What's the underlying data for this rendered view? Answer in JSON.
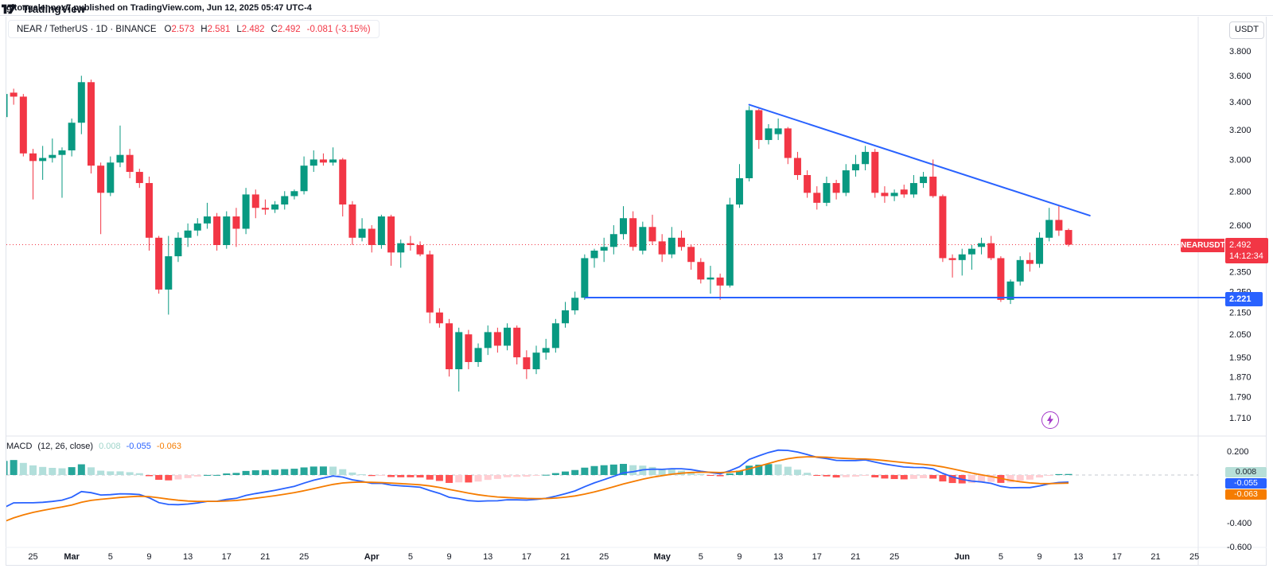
{
  "top_bar": {
    "text": "gitongalennox7 published on TradingView.com, Jun 12, 2025 05:47 UTC-4"
  },
  "legend": {
    "left": "NEAR / TetherUS · 1D · BINANCE",
    "o_label": "O",
    "o": "2.573",
    "h_label": "H",
    "h": "2.581",
    "l_label": "L",
    "l": "2.482",
    "c_label": "C",
    "c": "2.492",
    "change": "-0.081 (-3.15%)"
  },
  "currency_button": "USDT",
  "price_axis": {
    "ticks": [
      {
        "label": "3.800",
        "price": 3.8
      },
      {
        "label": "3.600",
        "price": 3.6
      },
      {
        "label": "3.400",
        "price": 3.4
      },
      {
        "label": "3.200",
        "price": 3.2
      },
      {
        "label": "3.000",
        "price": 3.0
      },
      {
        "label": "2.800",
        "price": 2.8
      },
      {
        "label": "2.600",
        "price": 2.6
      },
      {
        "label": "2.350",
        "price": 2.35
      },
      {
        "label": "2.250",
        "price": 2.25
      },
      {
        "label": "2.150",
        "price": 2.15
      },
      {
        "label": "2.050",
        "price": 2.05
      },
      {
        "label": "1.950",
        "price": 1.95
      },
      {
        "label": "1.870",
        "price": 1.87
      },
      {
        "label": "1.790",
        "price": 1.79
      },
      {
        "label": "1.710",
        "price": 1.71
      }
    ],
    "last_price_tag": {
      "symbol": "NEARUSDT",
      "price": "2.492",
      "countdown": "14:12:34",
      "color": "#f23645"
    },
    "hline_tag": {
      "price": "2.221",
      "color": "#2962ff"
    }
  },
  "time_axis": {
    "ticks": [
      {
        "label": "25",
        "i": 3
      },
      {
        "label": "Mar",
        "i": 7,
        "month": true
      },
      {
        "label": "5",
        "i": 11
      },
      {
        "label": "9",
        "i": 15
      },
      {
        "label": "13",
        "i": 19
      },
      {
        "label": "17",
        "i": 23
      },
      {
        "label": "21",
        "i": 27
      },
      {
        "label": "25",
        "i": 31
      },
      {
        "label": "Apr",
        "i": 38,
        "month": true
      },
      {
        "label": "5",
        "i": 42
      },
      {
        "label": "9",
        "i": 46
      },
      {
        "label": "13",
        "i": 50
      },
      {
        "label": "17",
        "i": 54
      },
      {
        "label": "21",
        "i": 58
      },
      {
        "label": "25",
        "i": 62
      },
      {
        "label": "May",
        "i": 68,
        "month": true
      },
      {
        "label": "5",
        "i": 72
      },
      {
        "label": "9",
        "i": 76
      },
      {
        "label": "13",
        "i": 80
      },
      {
        "label": "17",
        "i": 84
      },
      {
        "label": "21",
        "i": 88
      },
      {
        "label": "25",
        "i": 92
      },
      {
        "label": "Jun",
        "i": 99,
        "month": true
      },
      {
        "label": "5",
        "i": 103
      },
      {
        "label": "9",
        "i": 107
      },
      {
        "label": "13",
        "i": 111
      },
      {
        "label": "17",
        "i": 115
      },
      {
        "label": "21",
        "i": 119
      },
      {
        "label": "25",
        "i": 123
      }
    ]
  },
  "macd": {
    "title": "MACD",
    "params": "(12, 26, close)",
    "hist_value": "0.008",
    "macd_value": "-0.055",
    "signal_value": "-0.063",
    "hist_value_color": "#9fd4ca",
    "macd_value_color": "#2962ff",
    "signal_value_color": "#f57c00",
    "axis_ticks": [
      {
        "label": "0.200",
        "value": 0.2
      },
      {
        "label": "-0.400",
        "value": -0.4
      },
      {
        "label": "-0.600",
        "value": -0.6
      }
    ]
  },
  "attribution": {
    "brand": "TradingView"
  },
  "chart_data": {
    "type": "candlestick",
    "symbol": "NEAR / TetherUS",
    "ticker": "NEARUSDT",
    "exchange": "BINANCE",
    "interval": "1D",
    "scale": "log",
    "ylim": [
      1.71,
      3.8
    ],
    "colors": {
      "up": "#089981",
      "down": "#f23645",
      "line_blue": "#2962ff",
      "hist_up": "#26a69a",
      "hist_up_fade": "#b2dfdb",
      "hist_down": "#ff5252",
      "hist_down_fade": "#ffcdd2",
      "macd_line": "#2962ff",
      "signal_line": "#f57c00",
      "current_price": "#f23645"
    },
    "columns": [
      "date",
      "open",
      "high",
      "low",
      "close"
    ],
    "candles": [
      [
        "Feb 22",
        3.29,
        3.63,
        3.26,
        3.46
      ],
      [
        "Feb 23",
        3.47,
        3.5,
        3.38,
        3.44
      ],
      [
        "Feb 24",
        3.44,
        3.46,
        3.02,
        3.04
      ],
      [
        "Feb 25",
        3.04,
        3.07,
        2.75,
        2.99
      ],
      [
        "Feb 26",
        2.99,
        3.09,
        2.87,
        3.01
      ],
      [
        "Feb 27",
        3.01,
        3.14,
        2.98,
        3.03
      ],
      [
        "Feb 28",
        3.03,
        3.08,
        2.76,
        3.06
      ],
      [
        "Mar 1",
        3.06,
        3.28,
        3.02,
        3.25
      ],
      [
        "Mar 2",
        3.25,
        3.6,
        3.17,
        3.55
      ],
      [
        "Mar 3",
        3.55,
        3.57,
        2.91,
        2.96
      ],
      [
        "Mar 4",
        2.96,
        2.98,
        2.55,
        2.79
      ],
      [
        "Mar 5",
        2.79,
        3.02,
        2.77,
        2.98
      ],
      [
        "Mar 6",
        2.98,
        3.23,
        2.95,
        3.03
      ],
      [
        "Mar 7",
        3.03,
        3.07,
        2.88,
        2.92
      ],
      [
        "Mar 8",
        2.92,
        2.94,
        2.82,
        2.85
      ],
      [
        "Mar 9",
        2.85,
        2.89,
        2.46,
        2.53
      ],
      [
        "Mar 10",
        2.53,
        2.54,
        2.24,
        2.26
      ],
      [
        "Mar 11",
        2.26,
        2.54,
        2.14,
        2.43
      ],
      [
        "Mar 12",
        2.43,
        2.56,
        2.4,
        2.53
      ],
      [
        "Mar 13",
        2.53,
        2.61,
        2.48,
        2.57
      ],
      [
        "Mar 14",
        2.57,
        2.64,
        2.54,
        2.61
      ],
      [
        "Mar 15",
        2.61,
        2.73,
        2.58,
        2.65
      ],
      [
        "Mar 16",
        2.65,
        2.67,
        2.46,
        2.49
      ],
      [
        "Mar 17",
        2.49,
        2.68,
        2.47,
        2.65
      ],
      [
        "Mar 18",
        2.65,
        2.7,
        2.48,
        2.58
      ],
      [
        "Mar 19",
        2.58,
        2.82,
        2.55,
        2.78
      ],
      [
        "Mar 20",
        2.78,
        2.81,
        2.64,
        2.7
      ],
      [
        "Mar 21",
        2.7,
        2.75,
        2.66,
        2.69
      ],
      [
        "Mar 22",
        2.69,
        2.74,
        2.67,
        2.72
      ],
      [
        "Mar 23",
        2.72,
        2.8,
        2.69,
        2.77
      ],
      [
        "Mar 24",
        2.77,
        2.81,
        2.75,
        2.8
      ],
      [
        "Mar 25",
        2.8,
        3.02,
        2.78,
        2.96
      ],
      [
        "Mar 26",
        2.96,
        3.06,
        2.92,
        3.0
      ],
      [
        "Mar 27",
        3.0,
        3.04,
        2.96,
        2.98
      ],
      [
        "Mar 28",
        2.98,
        3.08,
        2.96,
        3.0
      ],
      [
        "Mar 29",
        3.0,
        3.01,
        2.65,
        2.72
      ],
      [
        "Mar 30",
        2.72,
        2.74,
        2.49,
        2.53
      ],
      [
        "Mar 31",
        2.53,
        2.64,
        2.51,
        2.58
      ],
      [
        "Apr 1",
        2.58,
        2.6,
        2.45,
        2.49
      ],
      [
        "Apr 2",
        2.49,
        2.66,
        2.47,
        2.65
      ],
      [
        "Apr 3",
        2.65,
        2.66,
        2.38,
        2.45
      ],
      [
        "Apr 4",
        2.45,
        2.52,
        2.37,
        2.5
      ],
      [
        "Apr 5",
        2.5,
        2.54,
        2.46,
        2.49
      ],
      [
        "Apr 6",
        2.49,
        2.51,
        2.43,
        2.44
      ],
      [
        "Apr 7",
        2.44,
        2.46,
        2.1,
        2.15
      ],
      [
        "Apr 8",
        2.15,
        2.17,
        2.08,
        2.1
      ],
      [
        "Apr 9",
        2.1,
        2.12,
        1.87,
        1.9
      ],
      [
        "Apr 10",
        1.9,
        2.08,
        1.81,
        2.06
      ],
      [
        "Apr 11",
        2.05,
        2.07,
        1.9,
        1.93
      ],
      [
        "Apr 12",
        1.93,
        2.01,
        1.91,
        1.99
      ],
      [
        "Apr 13",
        1.99,
        2.09,
        1.96,
        2.06
      ],
      [
        "Apr 14",
        2.06,
        2.08,
        1.97,
        2.0
      ],
      [
        "Apr 15",
        2.0,
        2.1,
        1.98,
        2.08
      ],
      [
        "Apr 16",
        2.08,
        2.09,
        1.92,
        1.95
      ],
      [
        "Apr 17",
        1.95,
        1.98,
        1.86,
        1.9
      ],
      [
        "Apr 18",
        1.9,
        2.0,
        1.88,
        1.97
      ],
      [
        "Apr 19",
        1.97,
        2.03,
        1.94,
        1.99
      ],
      [
        "Apr 20",
        1.99,
        2.12,
        1.97,
        2.1
      ],
      [
        "Apr 21",
        2.1,
        2.2,
        2.08,
        2.16
      ],
      [
        "Apr 22",
        2.16,
        2.25,
        2.14,
        2.22
      ],
      [
        "Apr 23",
        2.22,
        2.44,
        2.21,
        2.42
      ],
      [
        "Apr 24",
        2.42,
        2.47,
        2.37,
        2.46
      ],
      [
        "Apr 25",
        2.46,
        2.53,
        2.4,
        2.48
      ],
      [
        "Apr 26",
        2.48,
        2.6,
        2.44,
        2.55
      ],
      [
        "Apr 27",
        2.55,
        2.71,
        2.52,
        2.64
      ],
      [
        "Apr 28",
        2.64,
        2.68,
        2.46,
        2.48
      ],
      [
        "Apr 29",
        2.46,
        2.62,
        2.44,
        2.59
      ],
      [
        "Apr 30",
        2.59,
        2.66,
        2.49,
        2.51
      ],
      [
        "May 1",
        2.51,
        2.55,
        2.4,
        2.44
      ],
      [
        "May 2",
        2.44,
        2.59,
        2.42,
        2.53
      ],
      [
        "May 3",
        2.53,
        2.57,
        2.46,
        2.48
      ],
      [
        "May 4",
        2.48,
        2.49,
        2.36,
        2.4
      ],
      [
        "May 5",
        2.4,
        2.42,
        2.29,
        2.31
      ],
      [
        "May 6",
        2.31,
        2.38,
        2.24,
        2.32
      ],
      [
        "May 7",
        2.32,
        2.34,
        2.21,
        2.28
      ],
      [
        "May 8",
        2.28,
        2.76,
        2.27,
        2.72
      ],
      [
        "May 9",
        2.72,
        2.97,
        2.7,
        2.88
      ],
      [
        "May 10",
        2.88,
        3.37,
        2.86,
        3.34
      ],
      [
        "May 11",
        3.34,
        3.35,
        3.07,
        3.13
      ],
      [
        "May 12",
        3.13,
        3.24,
        3.1,
        3.21
      ],
      [
        "May 13",
        3.17,
        3.28,
        3.13,
        3.21
      ],
      [
        "May 14",
        3.21,
        3.22,
        2.97,
        3.01
      ],
      [
        "May 15",
        3.01,
        3.05,
        2.87,
        2.9
      ],
      [
        "May 16",
        2.9,
        2.93,
        2.76,
        2.79
      ],
      [
        "May 17",
        2.79,
        2.83,
        2.69,
        2.73
      ],
      [
        "May 18",
        2.73,
        2.89,
        2.71,
        2.85
      ],
      [
        "May 19",
        2.85,
        2.87,
        2.75,
        2.79
      ],
      [
        "May 20",
        2.79,
        2.97,
        2.77,
        2.93
      ],
      [
        "May 21",
        2.93,
        3.03,
        2.89,
        2.97
      ],
      [
        "May 22",
        2.97,
        3.09,
        2.93,
        3.05
      ],
      [
        "May 23",
        3.05,
        3.07,
        2.76,
        2.79
      ],
      [
        "May 24",
        2.79,
        2.83,
        2.73,
        2.77
      ],
      [
        "May 25",
        2.77,
        2.81,
        2.74,
        2.79
      ],
      [
        "May 26",
        2.81,
        2.84,
        2.76,
        2.78
      ],
      [
        "May 27",
        2.78,
        2.9,
        2.76,
        2.85
      ],
      [
        "May 28",
        2.85,
        2.92,
        2.82,
        2.89
      ],
      [
        "May 29",
        2.89,
        3.0,
        2.76,
        2.77
      ],
      [
        "May 30",
        2.77,
        2.78,
        2.4,
        2.42
      ],
      [
        "May 31",
        2.42,
        2.44,
        2.32,
        2.41
      ],
      [
        "Jun 1",
        2.41,
        2.47,
        2.33,
        2.44
      ],
      [
        "Jun 2",
        2.44,
        2.49,
        2.36,
        2.47
      ],
      [
        "Jun 3",
        2.48,
        2.53,
        2.44,
        2.5
      ],
      [
        "Jun 4",
        2.5,
        2.54,
        2.41,
        2.42
      ],
      [
        "Jun 5",
        2.42,
        2.43,
        2.2,
        2.21
      ],
      [
        "Jun 6",
        2.21,
        2.31,
        2.19,
        2.3
      ],
      [
        "Jun 7",
        2.3,
        2.43,
        2.28,
        2.41
      ],
      [
        "Jun 8",
        2.41,
        2.45,
        2.35,
        2.39
      ],
      [
        "Jun 9",
        2.39,
        2.56,
        2.37,
        2.53
      ],
      [
        "Jun 10",
        2.53,
        2.7,
        2.51,
        2.63
      ],
      [
        "Jun 11",
        2.63,
        2.71,
        2.54,
        2.57
      ],
      [
        "Jun 12",
        2.573,
        2.581,
        2.482,
        2.492
      ]
    ],
    "overlays": {
      "trendline": {
        "from": {
          "day_index": 77,
          "price": 3.38
        },
        "to": {
          "day_index": 112.2,
          "price": 2.655
        },
        "color": "#2962ff"
      },
      "support_line": {
        "price": 2.221,
        "from_day_index": 60,
        "color": "#2962ff"
      },
      "last_price_line": {
        "price": 2.492,
        "style": "dotted",
        "color": "#f23645"
      }
    },
    "indicator": {
      "name": "MACD",
      "fast": 12,
      "slow": 26,
      "source": "close",
      "signal_period": 9,
      "displayed_values": {
        "histogram": 0.008,
        "macd": -0.055,
        "signal": -0.063
      },
      "ylim": [
        -0.6,
        0.3
      ],
      "seed": {
        "ema_fast_offset": -0.3,
        "ema_slow_offset": 0.02,
        "signal_start": -0.42
      }
    }
  }
}
